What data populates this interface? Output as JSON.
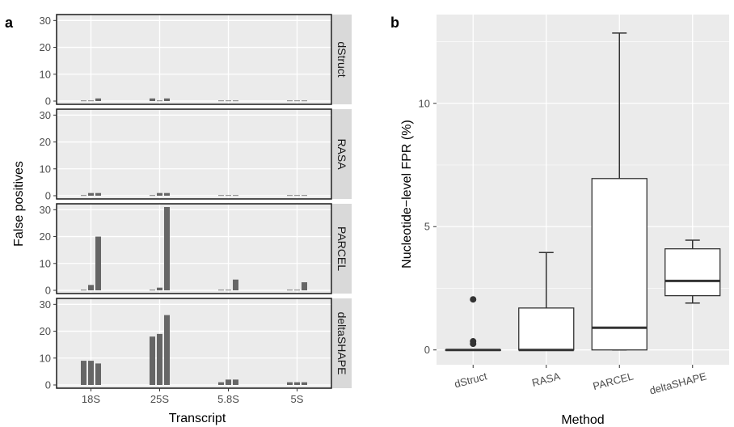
{
  "chart_data": [
    {
      "panel": "a",
      "type": "bar",
      "xlabel": "Transcript",
      "ylabel": "False positives",
      "ylim": [
        0,
        31
      ],
      "yticks": [
        0,
        10,
        20,
        30
      ],
      "categories": [
        "18S",
        "25S",
        "5.8S",
        "5S"
      ],
      "grid": true,
      "facets": [
        {
          "label": "dStruct",
          "values": [
            [
              0.2,
              0.2,
              1
            ],
            [
              1,
              0.2,
              1
            ],
            [
              0.2,
              0.2,
              0.2
            ],
            [
              0.2,
              0.2,
              0.2
            ]
          ]
        },
        {
          "label": "RASA",
          "values": [
            [
              0.2,
              1,
              1
            ],
            [
              0.2,
              1,
              1
            ],
            [
              0.2,
              0.2,
              0.2
            ],
            [
              0.2,
              0.2,
              0.2
            ]
          ]
        },
        {
          "label": "PARCEL",
          "values": [
            [
              0.2,
              2,
              20
            ],
            [
              0.2,
              1,
              31
            ],
            [
              0.2,
              0.2,
              4
            ],
            [
              0.2,
              0.2,
              3
            ]
          ]
        },
        {
          "label": "deltaSHAPE",
          "values": [
            [
              9,
              9,
              8
            ],
            [
              18,
              19,
              26
            ],
            [
              1,
              2,
              2
            ],
            [
              1,
              1,
              1
            ]
          ]
        }
      ],
      "bar_color": "#666666"
    },
    {
      "panel": "b",
      "type": "boxplot",
      "xlabel": "Method",
      "ylabel": "Nucleotide−level FPR (%)",
      "ylim": [
        -0.6,
        13.6
      ],
      "yticks": [
        0,
        5,
        10
      ],
      "categories": [
        "dStruct",
        "RASA",
        "PARCEL",
        "deltaSHAPE"
      ],
      "boxes": [
        {
          "min": 0,
          "q1": 0,
          "median": 0,
          "q3": 0,
          "max": 0,
          "outliers": [
            0.25,
            0.35,
            2.05
          ]
        },
        {
          "min": 0,
          "q1": 0,
          "median": 0,
          "q3": 1.7,
          "max": 3.95,
          "outliers": []
        },
        {
          "min": 0,
          "q1": 0,
          "median": 0.9,
          "q3": 6.95,
          "max": 12.85,
          "outliers": []
        },
        {
          "min": 1.9,
          "q1": 2.2,
          "median": 2.8,
          "q3": 4.1,
          "max": 4.45,
          "outliers": []
        }
      ],
      "grid": true
    }
  ],
  "colors": {
    "panel_bg": "#ebebeb",
    "grid": "#ffffff",
    "strip_bg": "#d9d9d9",
    "bar": "#666666",
    "box_line": "#333333"
  }
}
